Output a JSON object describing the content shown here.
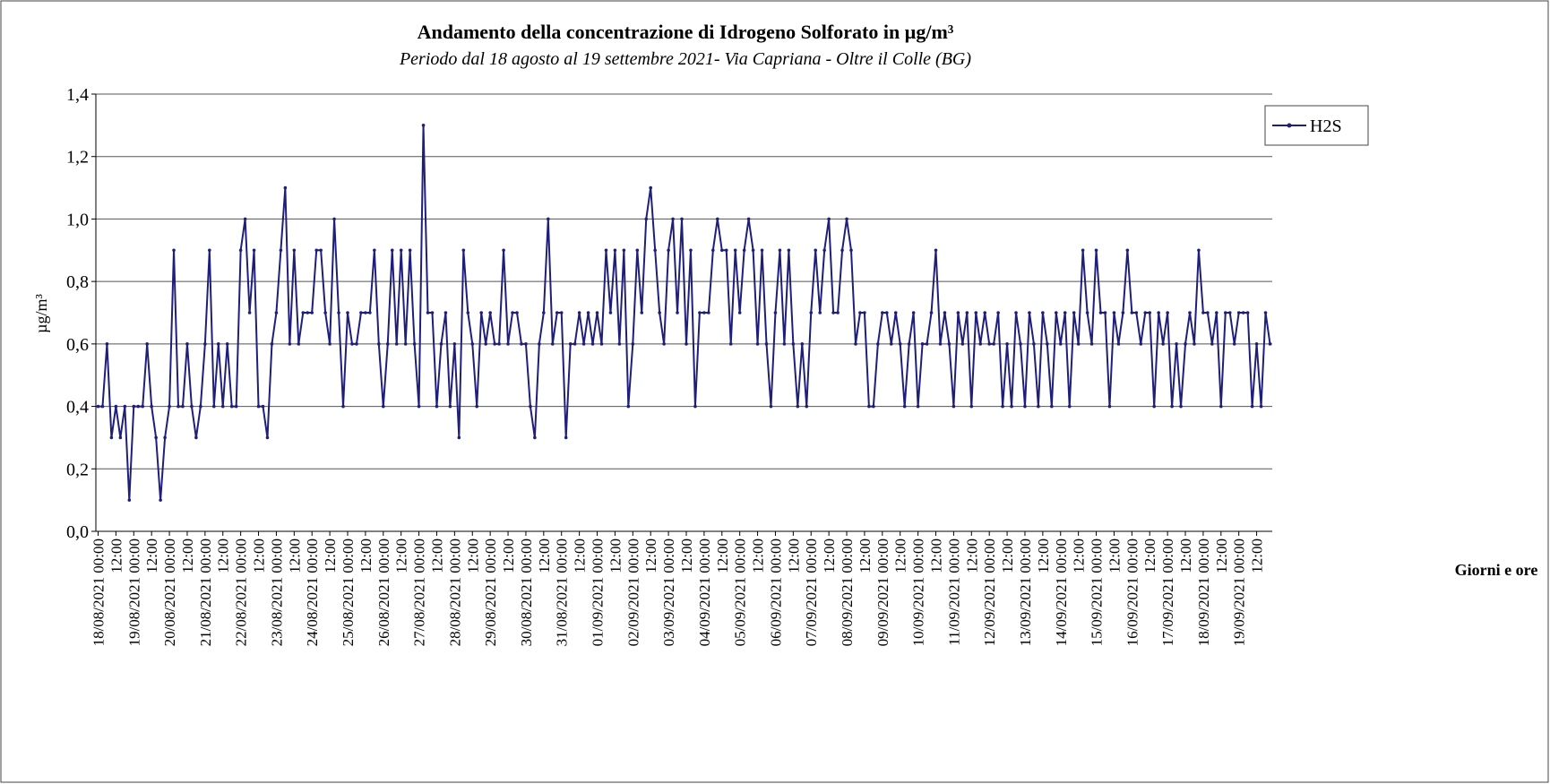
{
  "chart_data": {
    "type": "line",
    "title": "Andamento della concentrazione di Idrogeno Solforato in µg/m³",
    "subtitle": "Periodo dal 18 agosto al 19 settembre 2021- Via Capriana - Oltre il Colle (BG)",
    "y_label": "µg/m³",
    "x_label": "Giorni e ore",
    "ylim": [
      0,
      1.4
    ],
    "yticks": [
      {
        "value": 0,
        "label": "0,0"
      },
      {
        "value": 0.2,
        "label": "0,2"
      },
      {
        "value": 0.4,
        "label": "0,4"
      },
      {
        "value": 0.6,
        "label": "0,6"
      },
      {
        "value": 0.8,
        "label": "0,8"
      },
      {
        "value": 1.0,
        "label": "1,0"
      },
      {
        "value": 1.2,
        "label": "1,2"
      },
      {
        "value": 1.4,
        "label": "1,4"
      }
    ],
    "grid": true,
    "legend": "right",
    "categories": [
      "18/08/2021 00:00",
      null,
      null,
      null,
      "12:00",
      null,
      null,
      null,
      "19/08/2021 00:00",
      null,
      null,
      null,
      "12:00",
      null,
      null,
      null,
      "20/08/2021 00:00",
      null,
      null,
      null,
      "12:00",
      null,
      null,
      null,
      "21/08/2021 00:00",
      null,
      null,
      null,
      "12:00",
      null,
      null,
      null,
      "22/08/2021 00:00",
      null,
      null,
      null,
      "12:00",
      null,
      null,
      null,
      "23/08/2021 00:00",
      null,
      null,
      null,
      "12:00",
      null,
      null,
      null,
      "24/08/2021 00:00",
      null,
      null,
      null,
      "12:00",
      null,
      null,
      null,
      "25/08/2021 00:00",
      null,
      null,
      null,
      "12:00",
      null,
      null,
      null,
      "26/08/2021 00:00",
      null,
      null,
      null,
      "12:00",
      null,
      null,
      null,
      "27/08/2021 00:00",
      null,
      null,
      null,
      "12:00",
      null,
      null,
      null,
      "28/08/2021 00:00",
      null,
      null,
      null,
      "12:00",
      null,
      null,
      null,
      "29/08/2021 00:00",
      null,
      null,
      null,
      "12:00",
      null,
      null,
      null,
      "30/08/2021 00:00",
      null,
      null,
      null,
      "12:00",
      null,
      null,
      null,
      "31/08/2021 00:00",
      null,
      null,
      null,
      "12:00",
      null,
      null,
      null,
      "01/09/2021 00:00",
      null,
      null,
      null,
      "12:00",
      null,
      null,
      null,
      "02/09/2021 00:00",
      null,
      null,
      null,
      "12:00",
      null,
      null,
      null,
      "03/09/2021 00:00",
      null,
      null,
      null,
      "12:00",
      null,
      null,
      null,
      "04/09/2021 00:00",
      null,
      null,
      null,
      "12:00",
      null,
      null,
      null,
      "05/09/2021 00:00",
      null,
      null,
      null,
      "12:00",
      null,
      null,
      null,
      "06/09/2021 00:00",
      null,
      null,
      null,
      "12:00",
      null,
      null,
      null,
      "07/09/2021 00:00",
      null,
      null,
      null,
      "12:00",
      null,
      null,
      null,
      "08/09/2021 00:00",
      null,
      null,
      null,
      "12:00",
      null,
      null,
      null,
      "09/09/2021 00:00",
      null,
      null,
      null,
      "12:00",
      null,
      null,
      null,
      "10/09/2021 00:00",
      null,
      null,
      null,
      "12:00",
      null,
      null,
      null,
      "11/09/2021 00:00",
      null,
      null,
      null,
      "12:00",
      null,
      null,
      null,
      "12/09/2021 00:00",
      null,
      null,
      null,
      "12:00",
      null,
      null,
      null,
      "13/09/2021 00:00",
      null,
      null,
      null,
      "12:00",
      null,
      null,
      null,
      "14/09/2021 00:00",
      null,
      null,
      null,
      "12:00",
      null,
      null,
      null,
      "15/09/2021 00:00",
      null,
      null,
      null,
      "12:00",
      null,
      null,
      null,
      "16/09/2021 00:00",
      null,
      null,
      null,
      "12:00",
      null,
      null,
      null,
      "17/09/2021 00:00",
      null,
      null,
      null,
      "12:00",
      null,
      null,
      null,
      "18/09/2021 00:00",
      null,
      null,
      null,
      "12:00",
      null,
      null,
      null,
      "19/09/2021 00:00",
      null,
      null,
      null,
      "12:00",
      null,
      null,
      null
    ],
    "series": [
      {
        "name": "H2S",
        "color": "#1f1f7a",
        "values": [
          0.4,
          0.4,
          0.6,
          0.3,
          0.4,
          0.3,
          0.4,
          0.1,
          0.4,
          0.4,
          0.4,
          0.6,
          0.4,
          0.3,
          0.1,
          0.3,
          0.4,
          0.9,
          0.4,
          0.4,
          0.6,
          0.4,
          0.3,
          0.4,
          0.6,
          0.9,
          0.4,
          0.6,
          0.4,
          0.6,
          0.4,
          0.4,
          0.9,
          1.0,
          0.7,
          0.9,
          0.4,
          0.4,
          0.3,
          0.6,
          0.7,
          0.9,
          1.1,
          0.6,
          0.9,
          0.6,
          0.7,
          0.7,
          0.7,
          0.9,
          0.9,
          0.7,
          0.6,
          1.0,
          0.7,
          0.4,
          0.7,
          0.6,
          0.6,
          0.7,
          0.7,
          0.7,
          0.9,
          0.6,
          0.4,
          0.6,
          0.9,
          0.6,
          0.9,
          0.6,
          0.9,
          0.6,
          0.4,
          1.3,
          0.7,
          0.7,
          0.4,
          0.6,
          0.7,
          0.4,
          0.6,
          0.3,
          0.9,
          0.7,
          0.6,
          0.4,
          0.7,
          0.6,
          0.7,
          0.6,
          0.6,
          0.9,
          0.6,
          0.7,
          0.7,
          0.6,
          0.6,
          0.4,
          0.3,
          0.6,
          0.7,
          1.0,
          0.6,
          0.7,
          0.7,
          0.3,
          0.6,
          0.6,
          0.7,
          0.6,
          0.7,
          0.6,
          0.7,
          0.6,
          0.9,
          0.7,
          0.9,
          0.6,
          0.9,
          0.4,
          0.6,
          0.9,
          0.7,
          1.0,
          1.1,
          0.9,
          0.7,
          0.6,
          0.9,
          1.0,
          0.7,
          1.0,
          0.6,
          0.9,
          0.4,
          0.7,
          0.7,
          0.7,
          0.9,
          1.0,
          0.9,
          0.9,
          0.6,
          0.9,
          0.7,
          0.9,
          1.0,
          0.9,
          0.6,
          0.9,
          0.6,
          0.4,
          0.7,
          0.9,
          0.6,
          0.9,
          0.6,
          0.4,
          0.6,
          0.4,
          0.7,
          0.9,
          0.7,
          0.9,
          1.0,
          0.7,
          0.7,
          0.9,
          1.0,
          0.9,
          0.6,
          0.7,
          0.7,
          0.4,
          0.4,
          0.6,
          0.7,
          0.7,
          0.6,
          0.7,
          0.6,
          0.4,
          0.6,
          0.7,
          0.4,
          0.6,
          0.6,
          0.7,
          0.9,
          0.6,
          0.7,
          0.6,
          0.4,
          0.7,
          0.6,
          0.7,
          0.4,
          0.7,
          0.6,
          0.7,
          0.6,
          0.6,
          0.7,
          0.4,
          0.6,
          0.4,
          0.7,
          0.6,
          0.4,
          0.7,
          0.6,
          0.4,
          0.7,
          0.6,
          0.4,
          0.7,
          0.6,
          0.7,
          0.4,
          0.7,
          0.6,
          0.9,
          0.7,
          0.6,
          0.9,
          0.7,
          0.7,
          0.4,
          0.7,
          0.6,
          0.7,
          0.9,
          0.7,
          0.7,
          0.6,
          0.7,
          0.7,
          0.4,
          0.7,
          0.6,
          0.7,
          0.4,
          0.6,
          0.4,
          0.6,
          0.7,
          0.6,
          0.9,
          0.7,
          0.7,
          0.6,
          0.7,
          0.4,
          0.7,
          0.7,
          0.6,
          0.7,
          0.7,
          0.7,
          0.4,
          0.6,
          0.4,
          0.7,
          0.6
        ]
      }
    ]
  }
}
